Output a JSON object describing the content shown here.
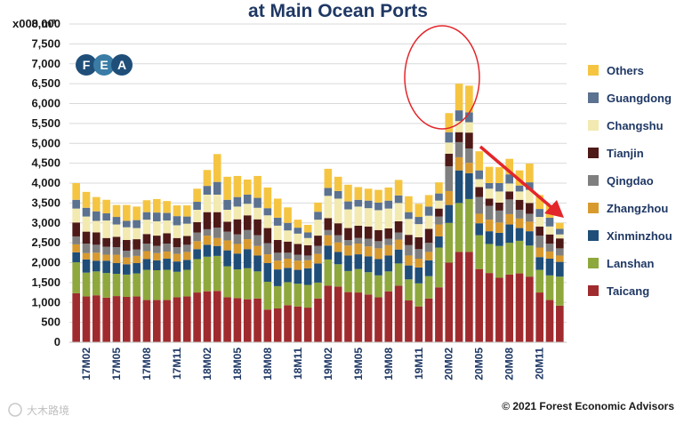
{
  "chart_data": {
    "type": "stacked-bar",
    "title": "at Main Ocean Ports",
    "ylabel": "x000 m³",
    "ylim": [
      0,
      8000
    ],
    "yticks": [
      0,
      500,
      1000,
      1500,
      2000,
      2500,
      3000,
      3500,
      4000,
      4500,
      5000,
      5500,
      6000,
      6500,
      7000,
      7500,
      8000
    ],
    "ytick_labels": [
      "0",
      "500",
      "1,000",
      "1,500",
      "2,000",
      "2,500",
      "3,000",
      "3,500",
      "4,000",
      "4,500",
      "5,000",
      "5,500",
      "6,000",
      "6,500",
      "7,000",
      "7,500",
      "8,000"
    ],
    "x_tick_labels": [
      "17M02",
      "17M05",
      "17M08",
      "17M11",
      "18M02",
      "18M05",
      "18M08",
      "18M11",
      "19M02",
      "19M05",
      "19M08",
      "19M11",
      "20M02",
      "20M05",
      "20M08",
      "20M11"
    ],
    "categories": [
      "17M01",
      "17M02",
      "17M03",
      "17M04",
      "17M05",
      "17M06",
      "17M07",
      "17M08",
      "17M09",
      "17M10",
      "17M11",
      "17M12",
      "18M01",
      "18M02",
      "18M03",
      "18M04",
      "18M05",
      "18M06",
      "18M07",
      "18M08",
      "18M09",
      "18M10",
      "18M11",
      "18M12",
      "19M01",
      "19M02",
      "19M03",
      "19M04",
      "19M05",
      "19M06",
      "19M07",
      "19M08",
      "19M09",
      "19M10",
      "19M11",
      "19M12",
      "20M01",
      "20M02",
      "20M03",
      "20M04",
      "20M05",
      "20M06",
      "20M07",
      "20M08",
      "20M09",
      "20M10",
      "20M11",
      "20M12",
      "21M01"
    ],
    "series": [
      {
        "name": "Taicang",
        "color": "#a02b2e",
        "values": [
          1230,
          1150,
          1180,
          1120,
          1160,
          1140,
          1150,
          1060,
          1060,
          1060,
          1130,
          1150,
          1250,
          1280,
          1290,
          1130,
          1110,
          1080,
          1100,
          820,
          850,
          930,
          900,
          870,
          1100,
          1420,
          1400,
          1260,
          1250,
          1200,
          1130,
          1280,
          1420,
          1050,
          900,
          1100,
          1380,
          2000,
          2270,
          2270,
          1840,
          1740,
          1620,
          1700,
          1730,
          1650,
          1250,
          1060,
          920
        ]
      },
      {
        "name": "Lanshan",
        "color": "#8fa83d",
        "values": [
          780,
          600,
          600,
          620,
          560,
          560,
          580,
          760,
          750,
          760,
          640,
          670,
          840,
          870,
          880,
          780,
          720,
          780,
          680,
          700,
          560,
          580,
          570,
          570,
          400,
          660,
          560,
          530,
          590,
          560,
          550,
          500,
          560,
          530,
          580,
          560,
          1000,
          1000,
          1230,
          1330,
          850,
          730,
          800,
          800,
          820,
          780,
          570,
          620,
          730
        ]
      },
      {
        "name": "Xinminzhou",
        "color": "#1f4e79",
        "values": [
          250,
          330,
          270,
          310,
          270,
          260,
          260,
          270,
          250,
          280,
          260,
          250,
          250,
          300,
          250,
          400,
          400,
          480,
          400,
          470,
          420,
          360,
          350,
          420,
          480,
          350,
          310,
          390,
          370,
          400,
          410,
          400,
          350,
          350,
          400,
          400,
          280,
          450,
          820,
          650,
          300,
          320,
          330,
          460,
          320,
          360,
          320,
          420,
          370
        ]
      },
      {
        "name": "Zhangzhou",
        "color": "#d89a2e",
        "values": [
          200,
          160,
          200,
          150,
          210,
          170,
          180,
          200,
          180,
          180,
          190,
          200,
          200,
          230,
          200,
          250,
          240,
          250,
          240,
          220,
          220,
          230,
          230,
          200,
          240,
          260,
          240,
          250,
          270,
          250,
          270,
          260,
          250,
          250,
          220,
          210,
          300,
          350,
          330,
          260,
          240,
          290,
          260,
          260,
          240,
          240,
          240,
          180,
          160
        ]
      },
      {
        "name": "Qingdao",
        "color": "#7f7f7f",
        "values": [
          200,
          240,
          200,
          200,
          190,
          170,
          160,
          190,
          180,
          200,
          170,
          180,
          220,
          160,
          260,
          220,
          240,
          230,
          270,
          280,
          200,
          150,
          150,
          120,
          200,
          130,
          180,
          140,
          140,
          190,
          180,
          160,
          180,
          260,
          240,
          230,
          200,
          620,
          380,
          360,
          420,
          350,
          300,
          370,
          220,
          200,
          300,
          200,
          180
        ]
      },
      {
        "name": "Tianjin",
        "color": "#4e1a18",
        "values": [
          350,
          300,
          310,
          220,
          260,
          270,
          260,
          240,
          260,
          260,
          230,
          220,
          260,
          430,
          390,
          250,
          380,
          370,
          400,
          380,
          320,
          280,
          270,
          260,
          260,
          300,
          300,
          300,
          310,
          310,
          280,
          260,
          280,
          260,
          300,
          350,
          200,
          320,
          250,
          400,
          250,
          180,
          200,
          200,
          250,
          270,
          230,
          230,
          250
        ]
      },
      {
        "name": "Changshu",
        "color": "#f2eab0",
        "values": [
          350,
          380,
          290,
          440,
          310,
          320,
          280,
          360,
          360,
          320,
          320,
          310,
          310,
          440,
          440,
          300,
          320,
          290,
          290,
          320,
          360,
          280,
          260,
          180,
          400,
          560,
          620,
          470,
          480,
          460,
          500,
          500,
          460,
          400,
          330,
          330,
          200,
          280,
          280,
          260,
          200,
          250,
          280,
          200,
          210,
          330,
          240,
          200,
          100
        ]
      },
      {
        "name": "Guangdong",
        "color": "#5b7290",
        "values": [
          220,
          220,
          240,
          180,
          190,
          160,
          200,
          190,
          220,
          190,
          230,
          180,
          200,
          220,
          320,
          250,
          240,
          230,
          250,
          180,
          200,
          190,
          150,
          140,
          200,
          200,
          190,
          200,
          170,
          190,
          190,
          200,
          190,
          170,
          180,
          230,
          180,
          260,
          270,
          250,
          220,
          140,
          210,
          230,
          150,
          190,
          200,
          220,
          140
        ]
      },
      {
        "name": "Others",
        "color": "#f5c542",
        "values": [
          420,
          400,
          360,
          340,
          300,
          400,
          340,
          300,
          340,
          300,
          270,
          280,
          330,
          400,
          700,
          580,
          530,
          380,
          550,
          520,
          480,
          390,
          200,
          190,
          230,
          480,
          360,
          420,
          320,
          300,
          320,
          330,
          390,
          400,
          330,
          290,
          280,
          480,
          670,
          670,
          480,
          410,
          400,
          390,
          380,
          470,
          350,
          320,
          150
        ]
      }
    ],
    "legend_order": [
      "Others",
      "Guangdong",
      "Changshu",
      "Tianjin",
      "Qingdao",
      "Zhangzhou",
      "Xinminzhou",
      "Lanshan",
      "Taicang"
    ],
    "logo_letters": [
      "F",
      "E",
      "A"
    ],
    "source_note": "© 2021 Forest Economic Advisors",
    "watermark": "大木路境",
    "annotations": [
      "circle highlighting 20M01-20M03 peak",
      "red arrow showing decline toward 21M01"
    ],
    "colors": {
      "title": "#1f3864",
      "arrow": "#e2262b",
      "circle": "#e2262b",
      "logo": "#1f4e79",
      "gridline": "#d9d9d9"
    }
  }
}
